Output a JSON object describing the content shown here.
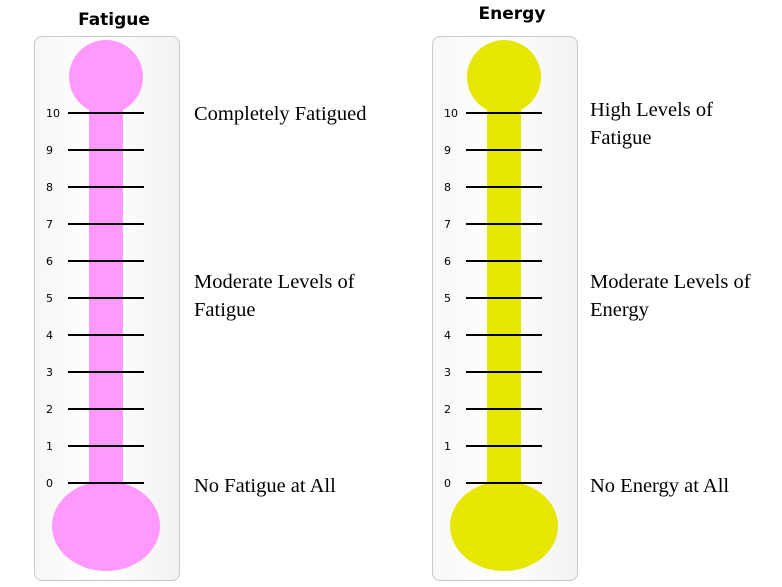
{
  "thermometers": [
    {
      "title": "Fatigue",
      "color": "#ff99ff",
      "scale": [
        "0",
        "1",
        "2",
        "3",
        "4",
        "5",
        "6",
        "7",
        "8",
        "9",
        "10"
      ],
      "labels": {
        "top": "Completely Fatigued",
        "middle": "Moderate Levels of Fatigue",
        "bottom": "No Fatigue at All"
      }
    },
    {
      "title": "Energy",
      "color": "#e6e600",
      "scale": [
        "0",
        "1",
        "2",
        "3",
        "4",
        "5",
        "6",
        "7",
        "8",
        "9",
        "10"
      ],
      "labels": {
        "top": "High Levels of Fatigue",
        "middle": "Moderate Levels of Energy",
        "bottom": "No Energy at All"
      }
    }
  ]
}
